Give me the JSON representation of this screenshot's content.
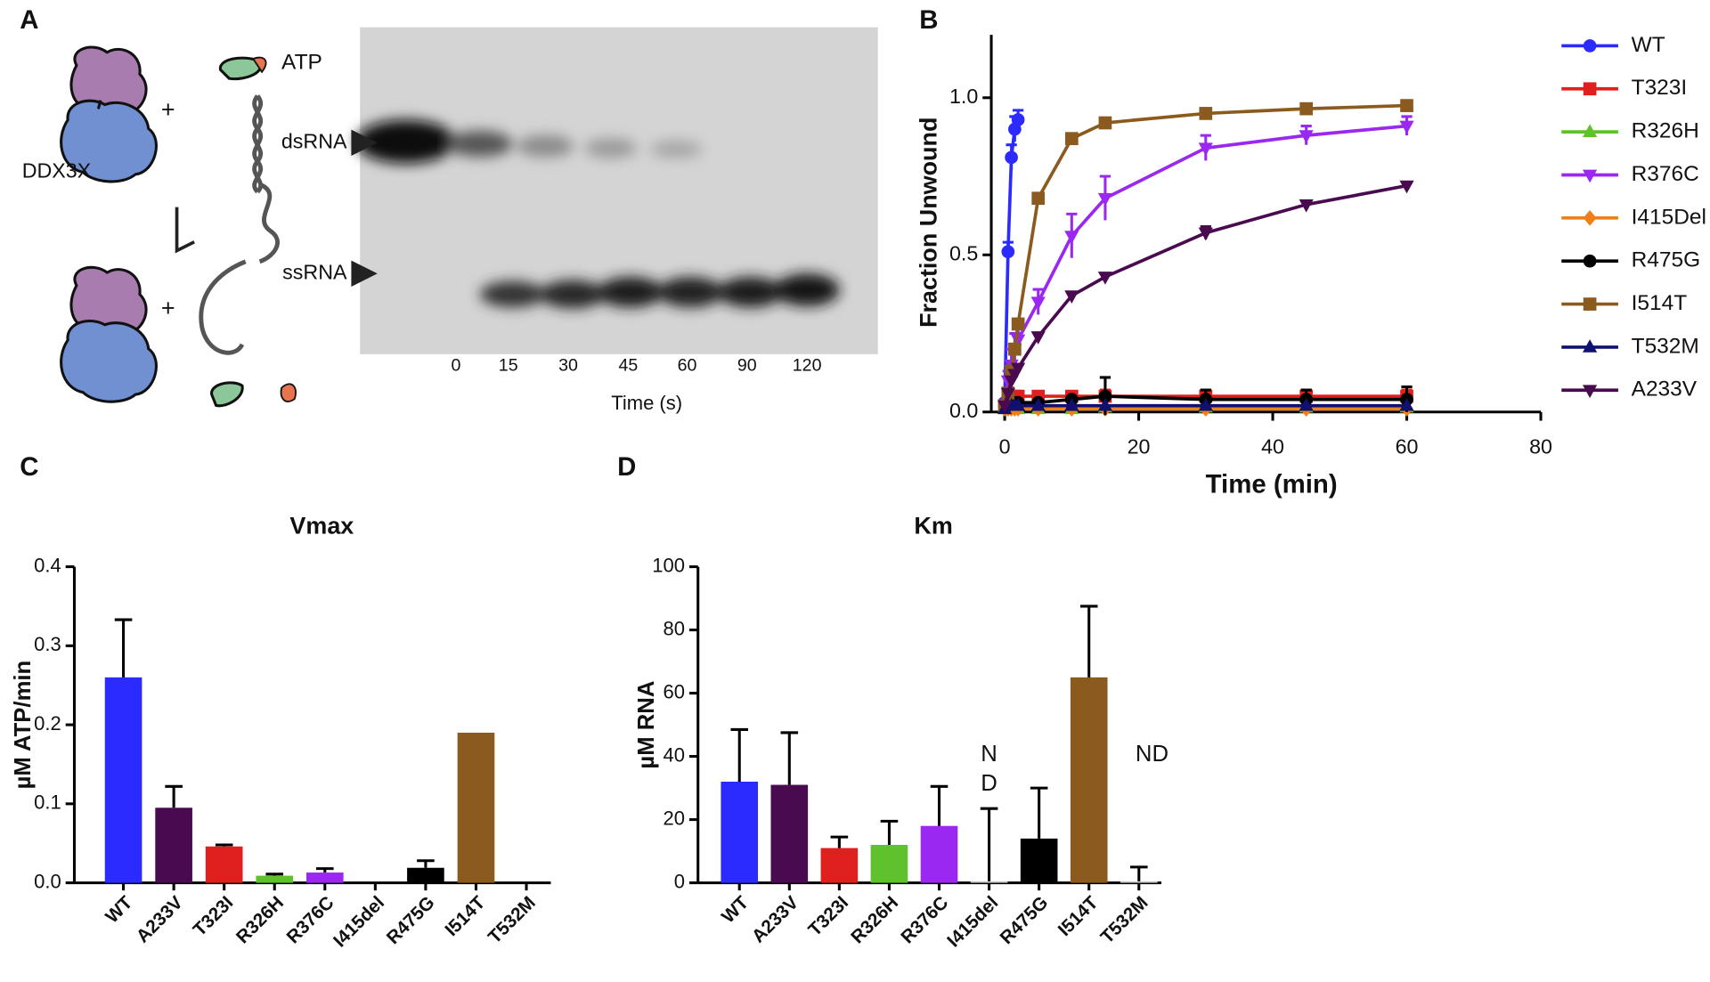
{
  "panel_labels": [
    "A",
    "B",
    "C",
    "D"
  ],
  "schematic": {
    "protein_label": "DDX3X",
    "atp_label": "ATP",
    "plus_signs": [
      "+",
      "+"
    ],
    "ds_label": "dsRNA",
    "ss_label": "ssRNA",
    "lanes": [
      "0",
      "15",
      "30",
      "45",
      "60",
      "90",
      "120"
    ],
    "time_label": "Time (s)"
  },
  "chart_data": [
    {
      "type": "line",
      "x_label": "Time (min)",
      "y_label": "Fraction Unwound",
      "x": [
        0,
        0.5,
        1,
        1.5,
        2,
        5,
        10,
        15,
        30,
        45,
        60
      ],
      "xlim": [
        -2,
        80
      ],
      "xticks": [
        0,
        20,
        40,
        60,
        80
      ],
      "ylim": [
        0,
        1.2
      ],
      "yticks": [
        {
          "value": 0,
          "label": "0.0"
        },
        0.5,
        {
          "value": 1,
          "label": "1.0"
        }
      ],
      "series": [
        {
          "name": "WT",
          "color": "#2b2bff",
          "marker": "circle",
          "values": [
            0.03,
            0.51,
            0.81,
            0.9,
            0.93,
            null,
            null,
            null,
            null,
            null,
            null
          ],
          "errors": [
            0.01,
            0.03,
            0.04,
            0.04,
            0.03,
            null,
            null,
            null,
            null,
            null,
            null
          ]
        },
        {
          "name": "T323I",
          "color": "#e0201e",
          "marker": "square",
          "values": [
            0.02,
            0.04,
            0.05,
            0.05,
            0.05,
            0.05,
            0.05,
            0.05,
            0.05,
            0.05,
            0.05
          ],
          "errors": [
            0.01,
            0.01,
            0.01,
            0.01,
            0.01,
            0.01,
            0.01,
            0.02,
            0.02,
            0.02,
            0.02
          ]
        },
        {
          "name": "R326H",
          "color": "#5fc22c",
          "marker": "triangle-up",
          "values": [
            0.01,
            0.01,
            0.01,
            0.01,
            0.01,
            0.01,
            0.01,
            0.015,
            0.015,
            0.015,
            0.015
          ]
        },
        {
          "name": "R376C",
          "color": "#9a28f0",
          "marker": "triangle-down",
          "values": [
            0.02,
            0.1,
            0.15,
            0.2,
            0.23,
            0.35,
            0.56,
            0.68,
            0.84,
            0.88,
            0.91
          ],
          "errors": [
            0.01,
            0.03,
            0.05,
            0.05,
            0.05,
            0.04,
            0.07,
            0.07,
            0.04,
            0.03,
            0.03
          ]
        },
        {
          "name": "I415Del",
          "color": "#f07f1a",
          "marker": "diamond",
          "values": [
            0.01,
            0.01,
            0.01,
            0.01,
            0.01,
            0.01,
            0.01,
            0.01,
            0.01,
            0.01,
            0.01
          ]
        },
        {
          "name": "R475G",
          "color": "#000000",
          "marker": "circle",
          "values": [
            0.02,
            0.03,
            0.03,
            0.03,
            0.03,
            0.03,
            0.04,
            0.05,
            0.04,
            0.04,
            0.04
          ],
          "errors": [
            null,
            null,
            null,
            null,
            null,
            null,
            null,
            0.06,
            0.03,
            0.03,
            0.04
          ]
        },
        {
          "name": "I514T",
          "color": "#8a5a1e",
          "marker": "square",
          "values": [
            0.02,
            0.06,
            0.13,
            0.2,
            0.28,
            0.68,
            0.87,
            0.92,
            0.95,
            0.965,
            0.975
          ],
          "errors": [
            0.01,
            0.01,
            0.01,
            0.01,
            0.01,
            0.01,
            0.01,
            0.01,
            0.01,
            0.01,
            0.01
          ]
        },
        {
          "name": "T532M",
          "color": "#101070",
          "marker": "triangle-up",
          "values": [
            0.01,
            0.02,
            0.02,
            0.02,
            0.02,
            0.02,
            0.02,
            0.02,
            0.02,
            0.02,
            0.02
          ]
        },
        {
          "name": "A233V",
          "color": "#4a0a4f",
          "marker": "triangle-down",
          "values": [
            0.02,
            0.06,
            0.1,
            0.12,
            0.14,
            0.24,
            0.37,
            0.43,
            0.57,
            0.66,
            0.72
          ],
          "errors": [
            0.01,
            0.01,
            0.01,
            0.01,
            0.01,
            0.01,
            0.01,
            0.01,
            0.02,
            0.01,
            0.01
          ]
        }
      ]
    },
    {
      "type": "bar",
      "title": "Vmax",
      "y_label": "µM ATP/min",
      "categories": [
        "WT",
        "A233V",
        "T323I",
        "R326H",
        "R376C",
        "I415del",
        "R475G",
        "I514T",
        "T532M"
      ],
      "colors": [
        "#2b2bff",
        "#4a0a4f",
        "#e0201e",
        "#5fc22c",
        "#9a28f0",
        "#f07f1a",
        "#000000",
        "#8a5a1e",
        "#101070"
      ],
      "values": [
        0.26,
        0.095,
        0.046,
        0.009,
        0.013,
        0,
        0.019,
        0.19,
        0
      ],
      "errors": [
        0.073,
        0.027,
        0.002,
        0.002,
        0.005,
        null,
        0.009,
        null,
        null
      ],
      "ylim": [
        0,
        0.4
      ],
      "yticks": [
        {
          "value": 0,
          "label": "0.0"
        },
        0.1,
        0.2,
        0.3,
        0.4
      ]
    },
    {
      "type": "bar",
      "title": "Km",
      "y_label": "µM RNA",
      "categories": [
        "WT",
        "A233V",
        "T323I",
        "R326H",
        "R376C",
        "I415del",
        "R475G",
        "I514T",
        "T532M"
      ],
      "colors": [
        "#2b2bff",
        "#4a0a4f",
        "#e0201e",
        "#5fc22c",
        "#9a28f0",
        "#c8c8c8",
        "#000000",
        "#8a5a1e",
        "#c8c8c8"
      ],
      "values": [
        32,
        31,
        11,
        12,
        18,
        0.5,
        14,
        65,
        0.5
      ],
      "errors": [
        16.5,
        16.5,
        3.5,
        7.5,
        12.5,
        23,
        16,
        22.5,
        4.5
      ],
      "annotations": [
        "N",
        "D",
        "ND"
      ],
      "ylim": [
        0,
        100
      ],
      "yticks": [
        0,
        20,
        40,
        60,
        80,
        100
      ]
    }
  ]
}
